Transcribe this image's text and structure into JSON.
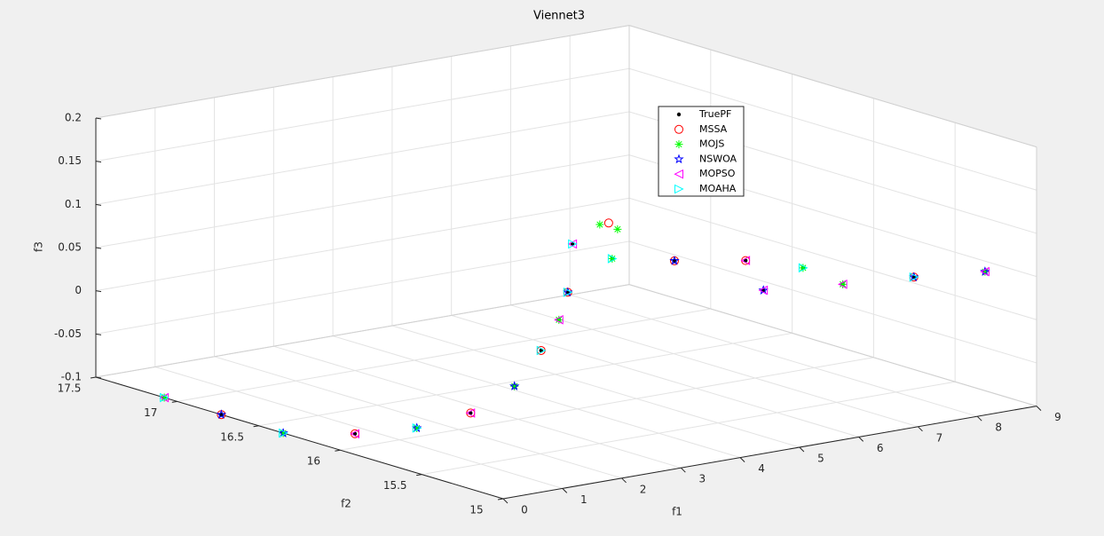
{
  "chart_data": {
    "type": "scatter3d",
    "title": "Viennet3",
    "xlabel": "f1",
    "ylabel": "f2",
    "zlabel": "f3",
    "xlim": [
      0,
      9
    ],
    "ylim": [
      15,
      17.5
    ],
    "zlim": [
      -0.1,
      0.2
    ],
    "xticks": [
      0,
      1,
      2,
      3,
      4,
      5,
      6,
      7,
      8,
      9
    ],
    "yticks": [
      15,
      15.5,
      16,
      16.5,
      17,
      17.5
    ],
    "zticks": [
      -0.1,
      -0.05,
      0,
      0.05,
      0.1,
      0.15,
      0.2
    ],
    "grid": true,
    "series": [
      {
        "name": "TruePF",
        "color": "#000000",
        "marker": "dot",
        "x": [
          0,
          0,
          0,
          0,
          0,
          0,
          0.19,
          0.64,
          0.94,
          1.09,
          1.17,
          1.84,
          2.89,
          4.09,
          5.06,
          4.39,
          5.73,
          6.93,
          8.13
        ],
        "y": [
          17.08,
          16.73,
          16.35,
          15.91,
          15.53,
          15.2,
          15,
          15,
          15,
          15,
          15,
          15,
          15,
          15,
          15,
          15,
          15,
          15,
          15
        ],
        "values": [
          -0.1,
          -0.1,
          -0.1,
          -0.076,
          -0.048,
          -0.012,
          0.028,
          0.064,
          0.096,
          0.126,
          0.181,
          0.156,
          0.141,
          0.127,
          0.107,
          0.089,
          0.08,
          0.074,
          0.066
        ]
      },
      {
        "name": "MSSA",
        "color": "#ff0000",
        "marker": "circle",
        "x": [
          0,
          0,
          0,
          0.64,
          1.09,
          2.89,
          4.09,
          6.93,
          1.78
        ],
        "y": [
          16.73,
          15.91,
          15.2,
          15,
          15,
          15,
          15,
          15,
          15
        ],
        "values": [
          -0.1,
          -0.076,
          -0.012,
          0.064,
          0.126,
          0.141,
          0.127,
          0.074,
          0.198
        ]
      },
      {
        "name": "MOJS",
        "color": "#00ff00",
        "marker": "asterisk",
        "x": [
          0,
          0,
          0,
          0.19,
          0.94,
          1.84,
          5.06,
          5.73,
          8.13,
          1.63,
          1.93
        ],
        "y": [
          17.08,
          16.35,
          15.53,
          15,
          15,
          15,
          15,
          15,
          15,
          15,
          15
        ],
        "values": [
          -0.1,
          -0.1,
          -0.048,
          0.028,
          0.096,
          0.156,
          0.107,
          0.08,
          0.066,
          0.198,
          0.189
        ]
      },
      {
        "name": "NSWOA",
        "color": "#0000ff",
        "marker": "star",
        "x": [
          0,
          0,
          0,
          0.19,
          1.09,
          2.89,
          4.39,
          6.93,
          8.13
        ],
        "y": [
          16.73,
          16.35,
          15.53,
          15,
          15,
          15,
          15,
          15,
          15
        ],
        "values": [
          -0.1,
          -0.1,
          -0.048,
          0.028,
          0.126,
          0.141,
          0.089,
          0.074,
          0.066
        ]
      },
      {
        "name": "MOPSO",
        "color": "#ff00ff",
        "marker": "triangle-left",
        "x": [
          0,
          0,
          0,
          0.94,
          1.17,
          4.09,
          4.39,
          5.73,
          8.13
        ],
        "y": [
          17.08,
          15.91,
          15.2,
          15,
          15,
          15,
          15,
          15,
          15
        ],
        "values": [
          -0.1,
          -0.076,
          -0.012,
          0.096,
          0.181,
          0.127,
          0.089,
          0.08,
          0.066
        ]
      },
      {
        "name": "MOAHA",
        "color": "#00ffff",
        "marker": "triangle-right",
        "x": [
          0,
          0,
          0,
          0.64,
          1.09,
          1.17,
          1.84,
          5.06,
          6.93
        ],
        "y": [
          17.08,
          16.35,
          15.53,
          15,
          15,
          15,
          15,
          15,
          15
        ],
        "values": [
          -0.1,
          -0.1,
          -0.048,
          0.064,
          0.126,
          0.181,
          0.156,
          0.107,
          0.074
        ]
      }
    ]
  }
}
